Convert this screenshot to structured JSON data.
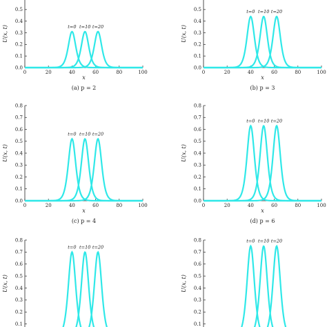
{
  "colors": {
    "curve": "#2fe8e8",
    "axis": "#222222"
  },
  "chart_data": [
    {
      "type": "line",
      "caption": "(a) p = 2",
      "xlabel": "x",
      "ylabel": "U(x, t)",
      "xlim": [
        0,
        100
      ],
      "ylim": [
        0,
        0.6
      ],
      "xticks": [
        "0",
        "20",
        "40",
        "60",
        "80",
        "100"
      ],
      "yticks": [
        "0.0",
        "0.1",
        "0.2",
        "0.3",
        "0.4",
        "0.5"
      ],
      "series": [
        {
          "name": "t=0",
          "center": 40,
          "peak": 0.31
        },
        {
          "name": "t=10",
          "center": 51,
          "peak": 0.31
        },
        {
          "name": "t=20",
          "center": 62,
          "peak": 0.31
        }
      ]
    },
    {
      "type": "line",
      "caption": "(b) p = 3",
      "xlabel": "x",
      "ylabel": "U(x, t)",
      "xlim": [
        0,
        100
      ],
      "ylim": [
        0,
        0.6
      ],
      "xticks": [
        "0",
        "20",
        "40",
        "60",
        "80",
        "100"
      ],
      "yticks": [
        "0.0",
        "0.1",
        "0.2",
        "0.3",
        "0.4",
        "0.5"
      ],
      "series": [
        {
          "name": "t=0",
          "center": 40,
          "peak": 0.44
        },
        {
          "name": "t=10",
          "center": 51,
          "peak": 0.44
        },
        {
          "name": "t=20",
          "center": 62,
          "peak": 0.44
        }
      ]
    },
    {
      "type": "line",
      "caption": "(c) p = 4",
      "xlabel": "x",
      "ylabel": "U(x, t)",
      "xlim": [
        0,
        100
      ],
      "ylim": [
        0,
        0.8
      ],
      "xticks": [
        "0",
        "20",
        "40",
        "60",
        "80",
        "100"
      ],
      "yticks": [
        "0.0",
        "0.1",
        "0.2",
        "0.3",
        "0.4",
        "0.5",
        "0.6",
        "0.7",
        "0.8"
      ],
      "series": [
        {
          "name": "t=0",
          "center": 40,
          "peak": 0.52
        },
        {
          "name": "t=10",
          "center": 51,
          "peak": 0.52
        },
        {
          "name": "t=20",
          "center": 62,
          "peak": 0.52
        }
      ]
    },
    {
      "type": "line",
      "caption": "(d) p = 6",
      "xlabel": "x",
      "ylabel": "U(x, t)",
      "xlim": [
        0,
        100
      ],
      "ylim": [
        0,
        0.8
      ],
      "xticks": [
        "0",
        "20",
        "40",
        "60",
        "80",
        "100"
      ],
      "yticks": [
        "0.0",
        "0.1",
        "0.2",
        "0.3",
        "0.4",
        "0.5",
        "0.6",
        "0.7",
        "0.8"
      ],
      "series": [
        {
          "name": "t=0",
          "center": 40,
          "peak": 0.63
        },
        {
          "name": "t=10",
          "center": 51,
          "peak": 0.63
        },
        {
          "name": "t=20",
          "center": 62,
          "peak": 0.63
        }
      ]
    },
    {
      "type": "line",
      "caption": "",
      "xlabel": "",
      "ylabel": "U(x, t)",
      "xlim": [
        0,
        100
      ],
      "ylim": [
        0,
        0.8
      ],
      "xticks": [],
      "yticks": [
        "0.1",
        "0.2",
        "0.3",
        "0.4",
        "0.5",
        "0.6",
        "0.7",
        "0.8"
      ],
      "series": [
        {
          "name": "t=0",
          "center": 40,
          "peak": 0.7
        },
        {
          "name": "t=10",
          "center": 51,
          "peak": 0.7
        },
        {
          "name": "t=20",
          "center": 62,
          "peak": 0.7
        }
      ]
    },
    {
      "type": "line",
      "caption": "",
      "xlabel": "",
      "ylabel": "U(x, t)",
      "xlim": [
        0,
        100
      ],
      "ylim": [
        0,
        0.8
      ],
      "xticks": [],
      "yticks": [
        "0.1",
        "0.2",
        "0.3",
        "0.4",
        "0.5",
        "0.6",
        "0.7",
        "0.8"
      ],
      "series": [
        {
          "name": "t=0",
          "center": 40,
          "peak": 0.75
        },
        {
          "name": "t=10",
          "center": 51,
          "peak": 0.75
        },
        {
          "name": "t=20",
          "center": 62,
          "peak": 0.75
        }
      ]
    }
  ]
}
